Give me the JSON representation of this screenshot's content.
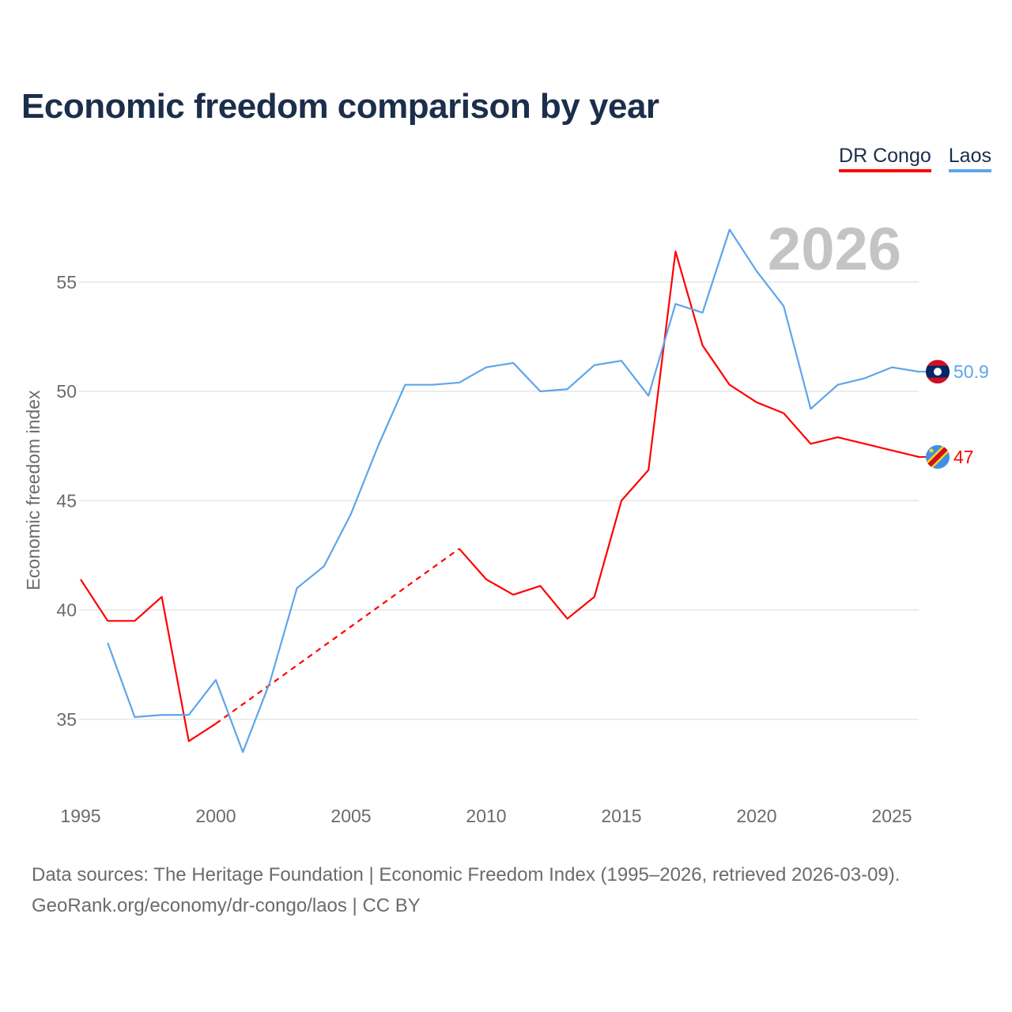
{
  "title": "Economic freedom comparison by year",
  "source_line1": "Data sources: The Heritage Foundation | Economic Freedom Index (1995–2026, retrieved 2026-03-09).",
  "source_line2": "GeoRank.org/economy/dr-congo/laos | CC BY",
  "chart_data": {
    "type": "line",
    "title": "Economic freedom comparison by year",
    "xlabel": "",
    "ylabel": "Economic freedom index",
    "year_watermark": "2026",
    "xlim": [
      1995,
      2026
    ],
    "ylim": [
      32,
      58
    ],
    "x_ticks": [
      1995,
      2000,
      2005,
      2010,
      2015,
      2020,
      2025
    ],
    "y_ticks": [
      35,
      40,
      45,
      50,
      55
    ],
    "grid": true,
    "legend_position": "top-right",
    "x": [
      1995,
      1996,
      1997,
      1998,
      1999,
      2000,
      2001,
      2002,
      2003,
      2004,
      2005,
      2006,
      2007,
      2008,
      2009,
      2010,
      2011,
      2012,
      2013,
      2014,
      2015,
      2016,
      2017,
      2018,
      2019,
      2020,
      2021,
      2022,
      2023,
      2024,
      2025,
      2026
    ],
    "series": [
      {
        "name": "DR Congo",
        "color": "#ff0000",
        "end_label": "47",
        "flag": "dr-congo-flag",
        "values": [
          41.4,
          39.5,
          39.5,
          40.6,
          34.0,
          34.8,
          null,
          null,
          null,
          null,
          null,
          null,
          null,
          null,
          42.8,
          41.4,
          40.7,
          41.1,
          39.6,
          40.6,
          45.0,
          46.4,
          56.4,
          52.1,
          50.3,
          49.5,
          49.0,
          47.6,
          47.9,
          47.6,
          47.3,
          47.0
        ]
      },
      {
        "name": "Laos",
        "color": "#5ea5ea",
        "end_label": "50.9",
        "flag": "laos-flag",
        "values": [
          null,
          38.5,
          35.1,
          35.2,
          35.2,
          36.8,
          33.5,
          36.7,
          41.0,
          42.0,
          44.4,
          47.5,
          50.3,
          50.3,
          50.4,
          51.1,
          51.3,
          50.0,
          50.1,
          51.2,
          51.4,
          49.8,
          54.0,
          53.6,
          57.4,
          55.5,
          53.9,
          49.2,
          50.3,
          50.6,
          51.1,
          50.9
        ]
      }
    ]
  }
}
